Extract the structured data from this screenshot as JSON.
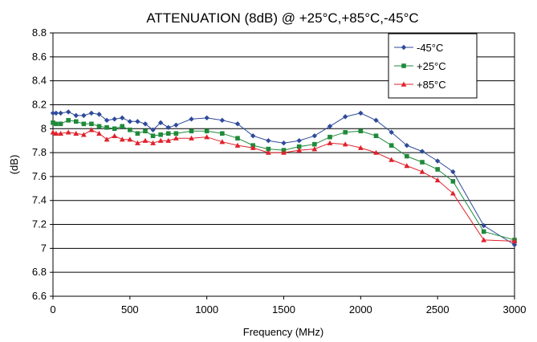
{
  "chart_data": {
    "type": "line",
    "title": "ATTENUATION (8dB) @ +25°C,+85°C,-45°C",
    "xlabel": "Frequency (MHz)",
    "ylabel": "(dB)",
    "xlim": [
      0,
      3000
    ],
    "ylim": [
      6.6,
      8.8
    ],
    "xticks": [
      0,
      500,
      1000,
      1500,
      2000,
      2500,
      3000
    ],
    "yticks": [
      6.6,
      6.8,
      7,
      7.2,
      7.4,
      7.6,
      7.8,
      8,
      8.2,
      8.4,
      8.6,
      8.8
    ],
    "ytick_labels": [
      "6.6",
      "6.8",
      "7",
      "7.2",
      "7.4",
      "7.6",
      "7.8",
      "8",
      "8.2",
      "8.4",
      "8.6",
      "8.8"
    ],
    "grid": "horizontal",
    "legend_position": "top-right",
    "series": [
      {
        "name": "-45°C",
        "color": "#2e4a9a",
        "marker": "diamond",
        "x": [
          0,
          20,
          50,
          100,
          150,
          200,
          250,
          300,
          350,
          400,
          450,
          500,
          550,
          600,
          650,
          700,
          750,
          800,
          900,
          1000,
          1100,
          1200,
          1300,
          1400,
          1500,
          1600,
          1700,
          1800,
          1900,
          2000,
          2100,
          2200,
          2300,
          2400,
          2500,
          2600,
          2800,
          3000
        ],
        "y": [
          8.13,
          8.13,
          8.13,
          8.14,
          8.11,
          8.11,
          8.13,
          8.12,
          8.07,
          8.08,
          8.09,
          8.06,
          8.06,
          8.04,
          7.99,
          8.05,
          8.01,
          8.03,
          8.08,
          8.09,
          8.07,
          8.04,
          7.94,
          7.9,
          7.88,
          7.9,
          7.94,
          8.02,
          8.1,
          8.13,
          8.07,
          7.97,
          7.86,
          7.81,
          7.73,
          7.64,
          7.19,
          7.03
        ]
      },
      {
        "name": "+25°C",
        "color": "#1f8a3a",
        "marker": "square",
        "x": [
          0,
          20,
          50,
          100,
          150,
          200,
          250,
          300,
          350,
          400,
          450,
          500,
          550,
          600,
          650,
          700,
          750,
          800,
          900,
          1000,
          1100,
          1200,
          1300,
          1400,
          1500,
          1600,
          1700,
          1800,
          1900,
          2000,
          2100,
          2200,
          2300,
          2400,
          2500,
          2600,
          2800,
          3000
        ],
        "y": [
          8.05,
          8.04,
          8.04,
          8.07,
          8.06,
          8.04,
          8.04,
          8.02,
          8.01,
          8.0,
          8.02,
          7.99,
          7.96,
          7.98,
          7.94,
          7.95,
          7.96,
          7.96,
          7.98,
          7.98,
          7.96,
          7.92,
          7.86,
          7.83,
          7.82,
          7.85,
          7.87,
          7.93,
          7.97,
          7.98,
          7.94,
          7.86,
          7.77,
          7.72,
          7.66,
          7.56,
          7.14,
          7.07
        ]
      },
      {
        "name": "+85°C",
        "color": "#e0202a",
        "marker": "triangle",
        "x": [
          0,
          20,
          50,
          100,
          150,
          200,
          250,
          300,
          350,
          400,
          450,
          500,
          550,
          600,
          650,
          700,
          750,
          800,
          900,
          1000,
          1100,
          1200,
          1300,
          1400,
          1500,
          1600,
          1700,
          1800,
          1900,
          2000,
          2100,
          2200,
          2300,
          2400,
          2500,
          2600,
          2800,
          3000
        ],
        "y": [
          7.97,
          7.96,
          7.96,
          7.97,
          7.96,
          7.95,
          7.99,
          7.96,
          7.91,
          7.94,
          7.91,
          7.91,
          7.88,
          7.9,
          7.88,
          7.9,
          7.9,
          7.92,
          7.92,
          7.93,
          7.89,
          7.86,
          7.84,
          7.8,
          7.8,
          7.82,
          7.83,
          7.88,
          7.87,
          7.84,
          7.8,
          7.74,
          7.69,
          7.64,
          7.57,
          7.46,
          7.07,
          7.06
        ]
      }
    ]
  }
}
